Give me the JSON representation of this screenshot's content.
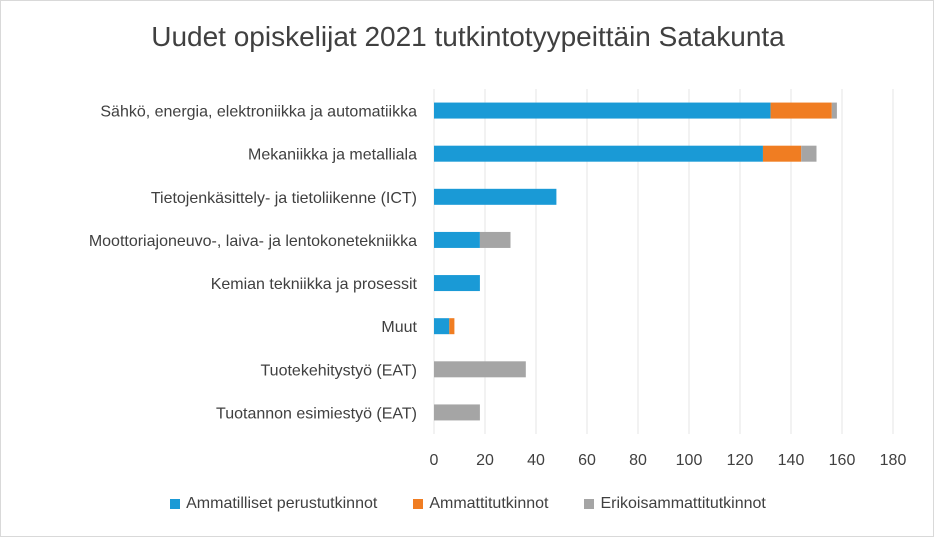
{
  "chart_data": {
    "type": "bar",
    "orientation": "horizontal",
    "stacked": true,
    "title": "Uudet opiskelijat 2021 tutkintotyypeittäin Satakunta",
    "categories": [
      "Sähkö, energia, elektroniikka ja automatiikka",
      "Mekaniikka ja metalliala",
      "Tietojenkäsittely- ja tietoliikenne (ICT)",
      "Moottoriajoneuvo-, laiva- ja lentokonetekniikka",
      "Kemian tekniikka ja prosessit",
      "Muut",
      "Tuotekehitystyö (EAT)",
      "Tuotannon esimiestyö (EAT)"
    ],
    "series": [
      {
        "name": "Ammatilliset perustutkinnot",
        "color": "#1a9ad6",
        "values": [
          132,
          129,
          48,
          18,
          18,
          6,
          0,
          0
        ]
      },
      {
        "name": "Ammattitutkinnot",
        "color": "#f07d22",
        "values": [
          24,
          15,
          0,
          0,
          0,
          2,
          0,
          0
        ]
      },
      {
        "name": "Erikoisammattitutkinnot",
        "color": "#a5a5a5",
        "values": [
          2,
          6,
          0,
          12,
          0,
          0,
          36,
          18
        ]
      }
    ],
    "xlim": [
      0,
      180
    ],
    "xticks": [
      "0",
      "20",
      "40",
      "60",
      "80",
      "100",
      "120",
      "140",
      "160",
      "180"
    ],
    "grid": true,
    "legend_position": "bottom"
  }
}
